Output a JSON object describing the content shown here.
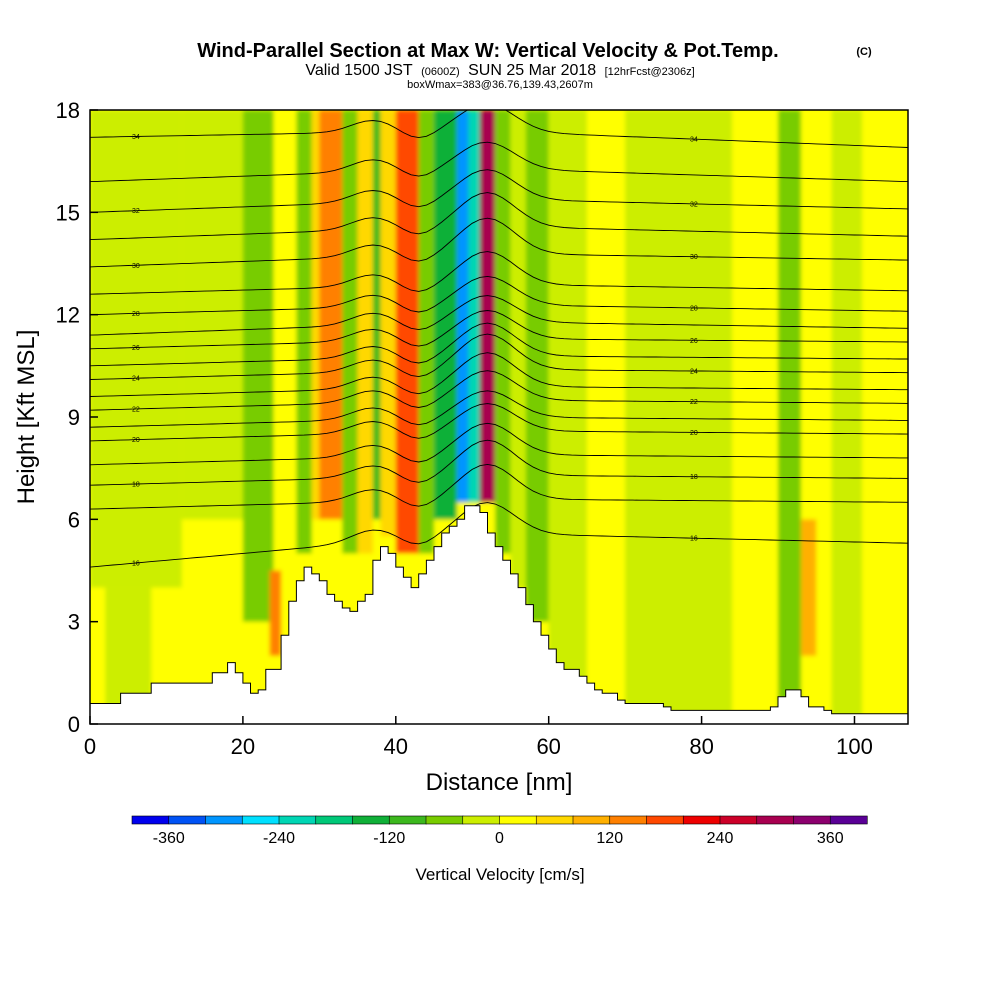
{
  "header": {
    "title": "Wind-Parallel Section at Max W: Vertical Velocity & Pot.Temp.",
    "copyright": "(C)",
    "valid_a": "Valid 1500 JST",
    "valid_zulu": "(0600Z)",
    "valid_b": "SUN 25 Mar 2018",
    "forecast": "[12hrFcst@2306z]",
    "boxinfo": "boxWmax=383@36.76,139.43,2607m"
  },
  "chart_data": {
    "type": "heatmap",
    "xlabel": "Distance [nm]",
    "ylabel": "Height [Kft MSL]",
    "xlim": [
      0,
      107
    ],
    "ylim": [
      0,
      18
    ],
    "x_ticks": [
      0,
      20,
      40,
      60,
      80,
      100
    ],
    "y_ticks": [
      0,
      3,
      6,
      9,
      12,
      15,
      18
    ],
    "grid": false,
    "colorbar": {
      "label": "Vertical Velocity [cm/s]",
      "ticks": [
        -360,
        -240,
        -120,
        0,
        120,
        240,
        360
      ],
      "range": [
        -400,
        400
      ],
      "colors": [
        "#0000ee",
        "#0052f5",
        "#0095ff",
        "#00e0ff",
        "#00d6b4",
        "#00c878",
        "#10b038",
        "#3cb81e",
        "#78cc00",
        "#ccee00",
        "#ffff00",
        "#ffd800",
        "#ffb000",
        "#ff8000",
        "#ff4800",
        "#ee0000",
        "#cc0028",
        "#a80050",
        "#8c006e",
        "#5a0096"
      ]
    },
    "w_field": {
      "background_cms": 30,
      "cells": [
        {
          "x0": 0,
          "x1": 107,
          "y0": 0,
          "y1": 18,
          "w": 30
        },
        {
          "x0": 0,
          "x1": 12,
          "y0": 4,
          "y1": 18,
          "w": -30
        },
        {
          "x0": 2,
          "x1": 8,
          "y0": 0,
          "y1": 4,
          "w": -15
        },
        {
          "x0": 12,
          "x1": 20,
          "y0": 6,
          "y1": 18,
          "w": -20
        },
        {
          "x0": 20,
          "x1": 24,
          "y0": 3,
          "y1": 18,
          "w": -60
        },
        {
          "x0": 24,
          "x1": 27,
          "y0": 6,
          "y1": 18,
          "w": 30
        },
        {
          "x0": 23.5,
          "x1": 25,
          "y0": 2,
          "y1": 4.5,
          "w": 150
        },
        {
          "x0": 27,
          "x1": 29,
          "y0": 5,
          "y1": 18,
          "w": -50
        },
        {
          "x0": 29,
          "x1": 30,
          "y0": 6,
          "y1": 18,
          "w": 60
        },
        {
          "x0": 30,
          "x1": 33,
          "y0": 6,
          "y1": 18,
          "w": 140
        },
        {
          "x0": 33,
          "x1": 35,
          "y0": 5,
          "y1": 18,
          "w": -80
        },
        {
          "x0": 35,
          "x1": 37,
          "y0": 5,
          "y1": 18,
          "w": 60
        },
        {
          "x0": 37,
          "x1": 38,
          "y0": 6,
          "y1": 18,
          "w": -100
        },
        {
          "x0": 38,
          "x1": 40,
          "y0": 5.5,
          "y1": 18,
          "w": 60
        },
        {
          "x0": 40,
          "x1": 43,
          "y0": 5,
          "y1": 18,
          "w": 160
        },
        {
          "x0": 43,
          "x1": 45,
          "y0": 5,
          "y1": 18,
          "w": -70
        },
        {
          "x0": 45,
          "x1": 48,
          "y0": 6,
          "y1": 18,
          "w": -160
        },
        {
          "x0": 48,
          "x1": 49.5,
          "y0": 6.5,
          "y1": 18,
          "w": -300
        },
        {
          "x0": 49.5,
          "x1": 51,
          "y0": 6.5,
          "y1": 18,
          "w": -230
        },
        {
          "x0": 51,
          "x1": 53,
          "y0": 6.5,
          "y1": 18,
          "w": 280
        },
        {
          "x0": 53,
          "x1": 55,
          "y0": 5,
          "y1": 18,
          "w": -80
        },
        {
          "x0": 55,
          "x1": 57,
          "y0": 4,
          "y1": 18,
          "w": -40
        },
        {
          "x0": 57,
          "x1": 60,
          "y0": 3,
          "y1": 18,
          "w": -60
        },
        {
          "x0": 60,
          "x1": 65,
          "y0": 0,
          "y1": 18,
          "w": -20
        },
        {
          "x0": 65,
          "x1": 70,
          "y0": 0,
          "y1": 18,
          "w": 35
        },
        {
          "x0": 70,
          "x1": 76,
          "y0": 0,
          "y1": 18,
          "w": -30
        },
        {
          "x0": 76,
          "x1": 84,
          "y0": 0,
          "y1": 18,
          "w": -15
        },
        {
          "x0": 84,
          "x1": 90,
          "y0": 0,
          "y1": 18,
          "w": 30
        },
        {
          "x0": 90,
          "x1": 93,
          "y0": 0,
          "y1": 18,
          "w": -60
        },
        {
          "x0": 93,
          "x1": 95,
          "y0": 2,
          "y1": 6,
          "w": 110
        },
        {
          "x0": 97,
          "x1": 101,
          "y0": 0,
          "y1": 18,
          "w": -40
        },
        {
          "x0": 101,
          "x1": 107,
          "y0": 0,
          "y1": 18,
          "w": 25
        }
      ]
    },
    "terrain_kft": {
      "x": [
        0,
        3,
        4,
        7,
        8,
        14,
        16,
        18,
        19,
        20,
        21,
        22,
        23,
        25,
        26,
        27,
        28,
        29,
        30,
        31,
        32,
        33,
        34,
        35,
        36,
        37,
        38,
        39,
        40,
        41,
        42,
        43,
        44,
        45,
        46,
        47,
        48,
        49,
        51,
        52,
        53,
        54,
        55,
        56,
        57,
        58,
        59,
        60,
        61,
        62,
        64,
        65,
        66,
        67,
        69,
        70,
        75,
        76,
        79,
        80,
        85,
        86,
        89,
        90,
        91,
        93,
        94,
        96,
        97,
        107
      ],
      "y": [
        0.6,
        0.6,
        0.9,
        0.9,
        1.2,
        1.2,
        1.5,
        1.8,
        1.5,
        1.2,
        0.9,
        1.0,
        1.6,
        2.6,
        3.6,
        4.2,
        4.6,
        4.4,
        4.2,
        3.8,
        3.6,
        3.4,
        3.3,
        3.6,
        3.8,
        4.8,
        5.2,
        5.0,
        4.6,
        4.3,
        4.0,
        4.4,
        4.8,
        5.2,
        5.6,
        5.8,
        6.0,
        6.4,
        6.2,
        5.6,
        5.2,
        4.8,
        4.4,
        4.0,
        3.5,
        3.0,
        2.6,
        2.2,
        1.8,
        1.6,
        1.4,
        1.2,
        1.0,
        0.9,
        0.7,
        0.6,
        0.5,
        0.4,
        0.4,
        0.4,
        0.4,
        0.4,
        0.5,
        0.8,
        1.0,
        0.8,
        0.5,
        0.4,
        0.3,
        0.3
      ]
    },
    "theta_contours": [
      {
        "label": "16",
        "y_left": 4.6,
        "y_mid": 5.6,
        "y_right": 5.3
      },
      {
        "label": "",
        "y_left": 6.3,
        "y_mid": 6.6,
        "y_right": 6.5
      },
      {
        "label": "18",
        "y_left": 7.0,
        "y_mid": 7.3,
        "y_right": 7.2
      },
      {
        "label": "",
        "y_left": 7.6,
        "y_mid": 7.9,
        "y_right": 7.8
      },
      {
        "label": "20",
        "y_left": 8.3,
        "y_mid": 8.6,
        "y_right": 8.5
      },
      {
        "label": "",
        "y_left": 8.7,
        "y_mid": 9.0,
        "y_right": 8.9
      },
      {
        "label": "22",
        "y_left": 9.2,
        "y_mid": 9.5,
        "y_right": 9.4
      },
      {
        "label": "",
        "y_left": 9.6,
        "y_mid": 9.9,
        "y_right": 9.8
      },
      {
        "label": "24",
        "y_left": 10.1,
        "y_mid": 10.4,
        "y_right": 10.3
      },
      {
        "label": "",
        "y_left": 10.5,
        "y_mid": 10.8,
        "y_right": 10.7
      },
      {
        "label": "26",
        "y_left": 11.0,
        "y_mid": 11.3,
        "y_right": 11.2
      },
      {
        "label": "",
        "y_left": 11.4,
        "y_mid": 11.8,
        "y_right": 11.6
      },
      {
        "label": "28",
        "y_left": 12.0,
        "y_mid": 12.3,
        "y_right": 12.1
      },
      {
        "label": "",
        "y_left": 12.6,
        "y_mid": 12.9,
        "y_right": 12.7
      },
      {
        "label": "30",
        "y_left": 13.4,
        "y_mid": 13.8,
        "y_right": 13.6
      },
      {
        "label": "",
        "y_left": 14.2,
        "y_mid": 14.6,
        "y_right": 14.3
      },
      {
        "label": "32",
        "y_left": 15.0,
        "y_mid": 15.4,
        "y_right": 15.1
      },
      {
        "label": "",
        "y_left": 15.9,
        "y_mid": 16.3,
        "y_right": 15.9
      },
      {
        "label": "34",
        "y_left": 17.2,
        "y_mid": 17.4,
        "y_right": 16.9
      }
    ]
  }
}
